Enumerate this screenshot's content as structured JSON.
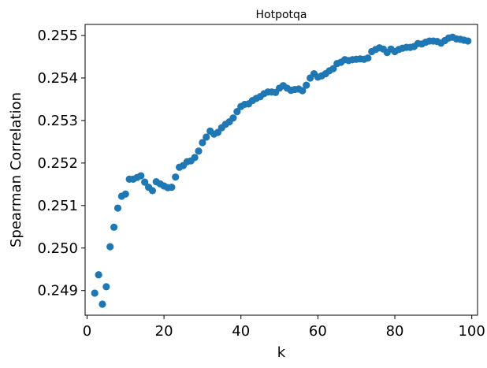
{
  "chart_data": {
    "type": "scatter",
    "title": "Hotpotqa",
    "xlabel": "k",
    "ylabel": "Spearman Correlation",
    "xlim": [
      -0.5,
      101.5
    ],
    "ylim": [
      0.24842,
      0.25526
    ],
    "xticks": [
      0,
      20,
      40,
      60,
      80,
      100
    ],
    "yticks": [
      0.249,
      0.25,
      0.251,
      0.252,
      0.253,
      0.254,
      0.255
    ],
    "ytick_labels": [
      "0.249",
      "0.250",
      "0.251",
      "0.252",
      "0.253",
      "0.254",
      "0.255"
    ],
    "grid": false,
    "color": "#1f77b4",
    "x": [
      2,
      3,
      4,
      5,
      6,
      7,
      8,
      9,
      10,
      11,
      12,
      13,
      14,
      15,
      16,
      17,
      18,
      19,
      20,
      21,
      22,
      23,
      24,
      25,
      26,
      27,
      28,
      29,
      30,
      31,
      32,
      33,
      34,
      35,
      36,
      37,
      38,
      39,
      40,
      41,
      42,
      43,
      44,
      45,
      46,
      47,
      48,
      49,
      50,
      51,
      52,
      53,
      54,
      55,
      56,
      57,
      58,
      59,
      60,
      61,
      62,
      63,
      64,
      65,
      66,
      67,
      68,
      69,
      70,
      71,
      72,
      73,
      74,
      75,
      76,
      77,
      78,
      79,
      80,
      81,
      82,
      83,
      84,
      85,
      86,
      87,
      88,
      89,
      90,
      91,
      92,
      93,
      94,
      95,
      96,
      97,
      98,
      99
    ],
    "y": [
      0.24894,
      0.24937,
      0.24868,
      0.24909,
      0.25003,
      0.25049,
      0.25094,
      0.25122,
      0.25127,
      0.25162,
      0.25162,
      0.25166,
      0.2517,
      0.25155,
      0.25143,
      0.25135,
      0.25156,
      0.25151,
      0.25146,
      0.25142,
      0.25143,
      0.25167,
      0.2519,
      0.25194,
      0.25203,
      0.25205,
      0.25213,
      0.25228,
      0.25248,
      0.25261,
      0.25275,
      0.25268,
      0.25272,
      0.25283,
      0.25291,
      0.25297,
      0.25306,
      0.25321,
      0.25333,
      0.25338,
      0.25339,
      0.25347,
      0.25352,
      0.25356,
      0.25363,
      0.25367,
      0.25367,
      0.25366,
      0.25376,
      0.25382,
      0.25376,
      0.25371,
      0.25373,
      0.25374,
      0.2537,
      0.25383,
      0.254,
      0.2541,
      0.25402,
      0.25405,
      0.2541,
      0.25417,
      0.25422,
      0.25434,
      0.25437,
      0.25443,
      0.25441,
      0.25443,
      0.25444,
      0.25445,
      0.25444,
      0.25447,
      0.25462,
      0.25467,
      0.25471,
      0.25468,
      0.2546,
      0.25468,
      0.25462,
      0.25467,
      0.2547,
      0.25472,
      0.25472,
      0.25474,
      0.25481,
      0.2548,
      0.25484,
      0.25487,
      0.25487,
      0.25486,
      0.25482,
      0.25488,
      0.25494,
      0.25496,
      0.25492,
      0.25491,
      0.25489,
      0.25487
    ]
  }
}
